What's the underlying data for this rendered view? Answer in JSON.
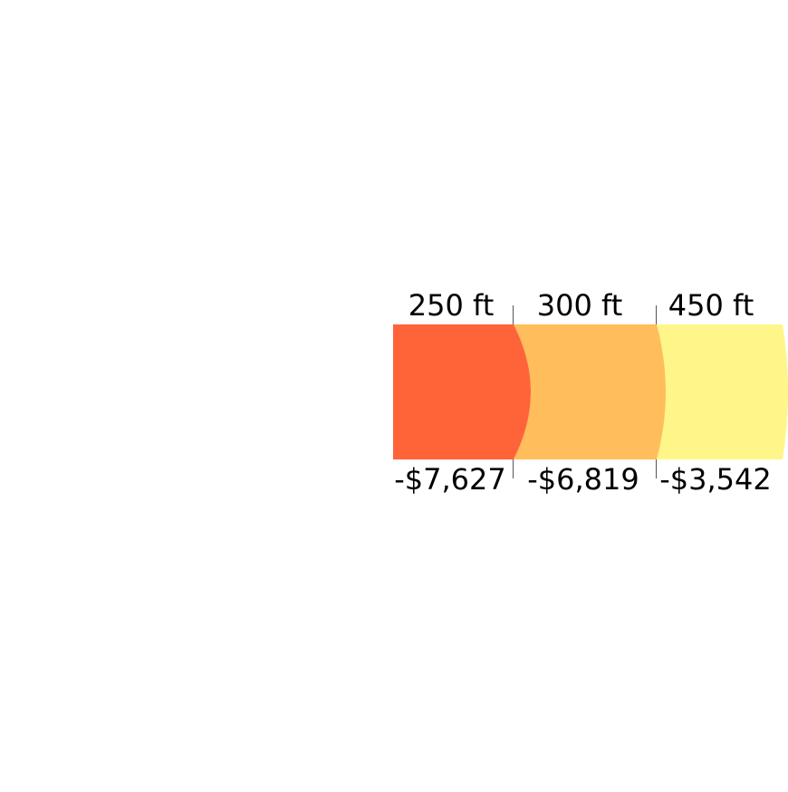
{
  "chart_data": {
    "type": "bar",
    "title": "",
    "categories": [
      "250 ft",
      "300 ft",
      "450 ft"
    ],
    "values": [
      -7627,
      -6819,
      -3542
    ],
    "value_labels": [
      "-$7,627",
      "-$6,819",
      "-$3,542"
    ],
    "colors": [
      "#FF6439",
      "#FFBD5C",
      "#FFF68A"
    ],
    "legend": "none",
    "grid": false
  }
}
